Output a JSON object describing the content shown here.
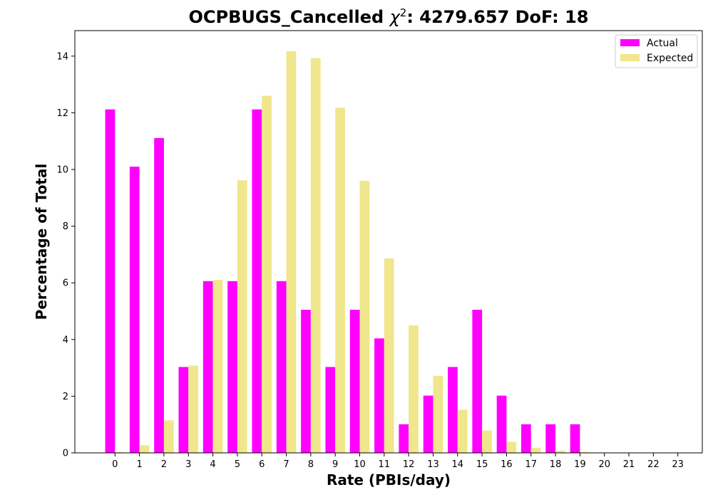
{
  "chart_data": {
    "type": "bar",
    "title_prefix": "OCPBUGS_Cancelled ",
    "title_symbol": "χ",
    "title_superscript": "2",
    "title_suffix": ": 4279.657 DoF: 18",
    "xlabel": "Rate (PBIs/day)",
    "ylabel": "Percentage of Total",
    "categories": [
      "0",
      "1",
      "2",
      "3",
      "4",
      "5",
      "6",
      "7",
      "8",
      "9",
      "10",
      "11",
      "12",
      "13",
      "14",
      "15",
      "16",
      "17",
      "18",
      "19",
      "20",
      "21",
      "22",
      "23"
    ],
    "ylim": [
      0,
      14.9
    ],
    "yticks": [
      "0",
      "2",
      "4",
      "6",
      "8",
      "10",
      "12",
      "14"
    ],
    "series": [
      {
        "name": "Actual",
        "color": "#ff00ff",
        "values": [
          12.12,
          10.1,
          11.11,
          3.03,
          6.06,
          6.06,
          12.12,
          6.06,
          5.05,
          3.03,
          5.05,
          4.04,
          1.01,
          2.02,
          3.03,
          5.05,
          2.02,
          1.01,
          1.01,
          1.01,
          0,
          0,
          0,
          0
        ]
      },
      {
        "name": "Expected",
        "color": "#f0e68c",
        "values": [
          0.03,
          0.27,
          1.15,
          3.08,
          6.1,
          9.62,
          12.6,
          14.17,
          13.93,
          12.18,
          9.6,
          6.86,
          4.5,
          2.72,
          1.52,
          0.79,
          0.39,
          0.18,
          0.08,
          0.03,
          0.01,
          0.005,
          0.002,
          0.001
        ]
      }
    ],
    "legend_position": "top-right",
    "grid": false
  }
}
